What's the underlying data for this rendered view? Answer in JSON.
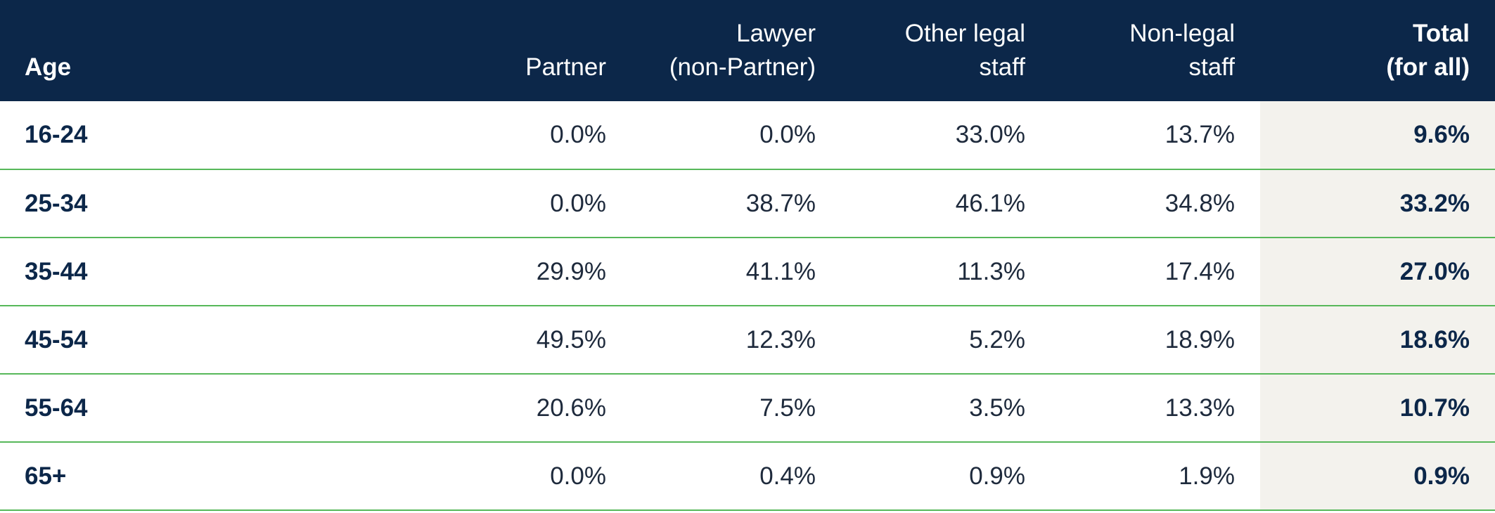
{
  "chart_data": {
    "type": "table",
    "columns": [
      "Age",
      "Partner",
      "Lawyer (non-Partner)",
      "Other legal staff",
      "Non-legal staff",
      "Total (for all)"
    ],
    "header_lines": [
      [
        "Age"
      ],
      [
        "Partner"
      ],
      [
        "Lawyer",
        "(non-Partner)"
      ],
      [
        "Other legal",
        "staff"
      ],
      [
        "Non-legal",
        "staff"
      ],
      [
        "Total",
        "(for all)"
      ]
    ],
    "rows": [
      {
        "age": "16-24",
        "values": [
          "0.0%",
          "0.0%",
          "33.0%",
          "13.7%",
          "9.6%"
        ]
      },
      {
        "age": "25-34",
        "values": [
          "0.0%",
          "38.7%",
          "46.1%",
          "34.8%",
          "33.2%"
        ]
      },
      {
        "age": "35-44",
        "values": [
          "29.9%",
          "41.1%",
          "11.3%",
          "17.4%",
          "27.0%"
        ]
      },
      {
        "age": "45-54",
        "values": [
          "49.5%",
          "12.3%",
          "5.2%",
          "18.9%",
          "18.6%"
        ]
      },
      {
        "age": "55-64",
        "values": [
          "20.6%",
          "7.5%",
          "3.5%",
          "13.3%",
          "10.7%"
        ]
      },
      {
        "age": "65+",
        "values": [
          "0.0%",
          "0.4%",
          "0.9%",
          "1.9%",
          "0.9%"
        ]
      }
    ]
  },
  "colors": {
    "header_bg": "#0c2749",
    "row_divider": "#57b85a",
    "total_column_bg": "#f3f2ed"
  }
}
